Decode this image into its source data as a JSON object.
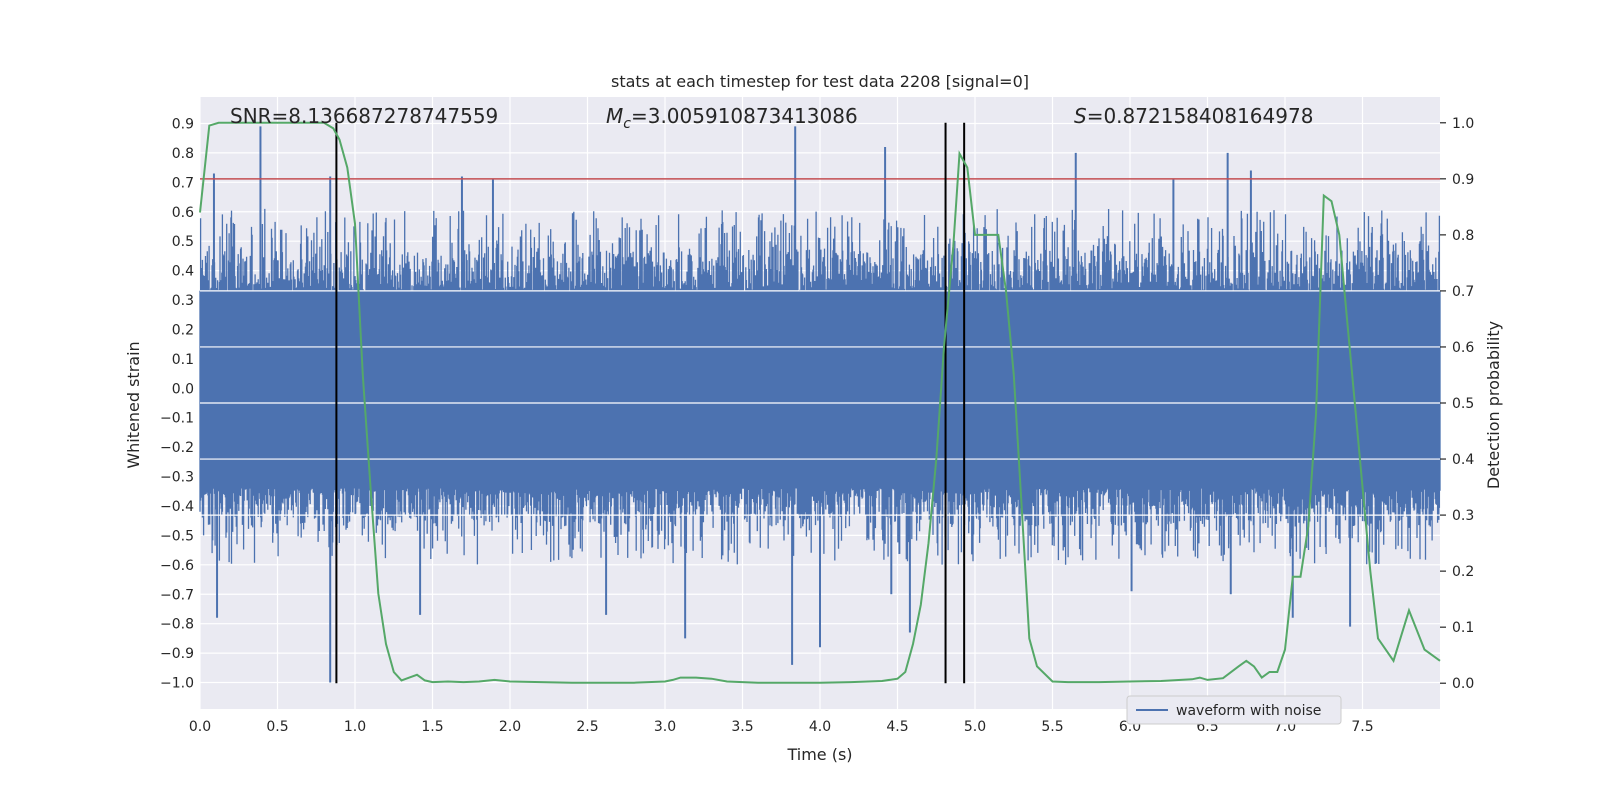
{
  "chart_data": {
    "type": "line",
    "title": "stats at each timestep for test data 2208 [signal=0]",
    "xlabel": "Time (s)",
    "ylabel": "Whitened strain",
    "y2label": "Detection probability",
    "xlim": [
      0.0,
      8.0
    ],
    "ylim": [
      -1.09,
      0.99
    ],
    "y2lim": [
      -0.046,
      1.046
    ],
    "x_ticks": [
      0.0,
      0.5,
      1.0,
      1.5,
      2.0,
      2.5,
      3.0,
      3.5,
      4.0,
      4.5,
      5.0,
      5.5,
      6.0,
      6.5,
      7.0,
      7.5
    ],
    "x_tick_labels": [
      "0.0",
      "0.5",
      "1.0",
      "1.5",
      "2.0",
      "2.5",
      "3.0",
      "3.5",
      "4.0",
      "4.5",
      "5.0",
      "5.5",
      "6.0",
      "6.5",
      "7.0",
      "7.5"
    ],
    "y_ticks": [
      0.9,
      0.8,
      0.7,
      0.6,
      0.5,
      0.4,
      0.3,
      0.2,
      0.1,
      0.0,
      -0.1,
      -0.2,
      -0.3,
      -0.4,
      -0.5,
      -0.6,
      -0.7,
      -0.8,
      -0.9,
      -1.0
    ],
    "y_tick_labels": [
      "0.9",
      "0.8",
      "0.7",
      "0.6",
      "0.5",
      "0.4",
      "0.3",
      "0.2",
      "0.1",
      "0.0",
      "−0.1",
      "−0.2",
      "−0.3",
      "−0.4",
      "−0.5",
      "−0.6",
      "−0.7",
      "−0.8",
      "−0.9",
      "−1.0"
    ],
    "y2_ticks": [
      1.0,
      0.9,
      0.8,
      0.7,
      0.6,
      0.5,
      0.4,
      0.3,
      0.2,
      0.1,
      0.0
    ],
    "y2_tick_labels": [
      "1.0",
      "0.9",
      "0.8",
      "0.7",
      "0.6",
      "0.5",
      "0.4",
      "0.3",
      "0.2",
      "0.1",
      "0.0"
    ],
    "annotations": {
      "snr": "SNR=8.136687278747559",
      "mc_symbol": "M",
      "mc_sub": "c",
      "mc_value": "=3.005910873413086",
      "s_symbol": "S",
      "s_value": "=0.872158408164978"
    },
    "legend": {
      "label": "waveform with noise",
      "location": "lower-right"
    },
    "threshold": {
      "value": 0.9,
      "axis": "y2",
      "color": "#c44e52"
    },
    "vertical_lines": [
      0.88,
      4.81,
      4.93
    ],
    "waveform": {
      "name": "waveform with noise",
      "color": "#4c72b0",
      "t_start": 0.0,
      "t_end": 8.0,
      "samples": 2048,
      "seed": 2208,
      "band_upper": 0.33,
      "band_lower": -0.34,
      "spikes": [
        {
          "t": 0.39,
          "v": 0.89
        },
        {
          "t": 0.84,
          "v": 0.72
        },
        {
          "t": 0.09,
          "v": 0.73
        },
        {
          "t": 1.69,
          "v": 0.72
        },
        {
          "t": 1.89,
          "v": 0.71
        },
        {
          "t": 3.84,
          "v": 0.89
        },
        {
          "t": 4.42,
          "v": 0.82
        },
        {
          "t": 5.65,
          "v": 0.8
        },
        {
          "t": 6.28,
          "v": 0.71
        },
        {
          "t": 6.63,
          "v": 0.8
        },
        {
          "t": 6.78,
          "v": 0.74
        },
        {
          "t": 0.84,
          "v": -1.0
        },
        {
          "t": 0.11,
          "v": -0.78
        },
        {
          "t": 1.42,
          "v": -0.77
        },
        {
          "t": 2.62,
          "v": -0.77
        },
        {
          "t": 3.13,
          "v": -0.85
        },
        {
          "t": 3.82,
          "v": -0.94
        },
        {
          "t": 4.0,
          "v": -0.88
        },
        {
          "t": 4.58,
          "v": -0.83
        },
        {
          "t": 6.01,
          "v": -0.69
        },
        {
          "t": 6.65,
          "v": -0.7
        },
        {
          "t": 7.05,
          "v": -0.78
        },
        {
          "t": 7.42,
          "v": -0.81
        },
        {
          "t": 4.46,
          "v": -0.7
        }
      ]
    },
    "detection_probability": {
      "name": "Detection probability",
      "color": "#55a868",
      "x": [
        0.0,
        0.06,
        0.12,
        0.2,
        0.3,
        0.4,
        0.5,
        0.6,
        0.7,
        0.8,
        0.86,
        0.9,
        0.95,
        1.0,
        1.05,
        1.1,
        1.15,
        1.2,
        1.25,
        1.3,
        1.35,
        1.4,
        1.45,
        1.5,
        1.6,
        1.7,
        1.8,
        1.9,
        2.0,
        2.2,
        2.4,
        2.6,
        2.8,
        3.0,
        3.05,
        3.1,
        3.15,
        3.2,
        3.3,
        3.4,
        3.5,
        3.6,
        3.8,
        4.0,
        4.2,
        4.4,
        4.5,
        4.55,
        4.6,
        4.65,
        4.7,
        4.75,
        4.8,
        4.86,
        4.9,
        4.95,
        5.0,
        5.05,
        5.1,
        5.15,
        5.2,
        5.25,
        5.3,
        5.35,
        5.4,
        5.5,
        5.6,
        5.8,
        6.0,
        6.2,
        6.4,
        6.45,
        6.5,
        6.6,
        6.7,
        6.75,
        6.8,
        6.85,
        6.9,
        6.95,
        7.0,
        7.05,
        7.1,
        7.15,
        7.2,
        7.25,
        7.3,
        7.35,
        7.4,
        7.45,
        7.5,
        7.55,
        7.6,
        7.7,
        7.8,
        7.9,
        8.0
      ],
      "y": [
        0.84,
        0.995,
        1.0,
        1.0,
        1.0,
        1.0,
        1.0,
        1.0,
        1.0,
        1.0,
        0.99,
        0.97,
        0.92,
        0.82,
        0.55,
        0.35,
        0.16,
        0.07,
        0.02,
        0.005,
        0.01,
        0.015,
        0.005,
        0.002,
        0.003,
        0.002,
        0.003,
        0.006,
        0.003,
        0.002,
        0.001,
        0.001,
        0.001,
        0.003,
        0.006,
        0.01,
        0.01,
        0.01,
        0.008,
        0.003,
        0.002,
        0.001,
        0.001,
        0.001,
        0.002,
        0.004,
        0.008,
        0.02,
        0.07,
        0.14,
        0.25,
        0.4,
        0.6,
        0.78,
        0.945,
        0.92,
        0.8,
        0.8,
        0.8,
        0.8,
        0.7,
        0.55,
        0.32,
        0.08,
        0.03,
        0.003,
        0.002,
        0.002,
        0.003,
        0.004,
        0.007,
        0.01,
        0.006,
        0.009,
        0.03,
        0.04,
        0.03,
        0.01,
        0.02,
        0.02,
        0.06,
        0.19,
        0.19,
        0.28,
        0.48,
        0.87,
        0.86,
        0.8,
        0.65,
        0.5,
        0.35,
        0.2,
        0.08,
        0.04,
        0.13,
        0.06,
        0.04
      ]
    }
  }
}
